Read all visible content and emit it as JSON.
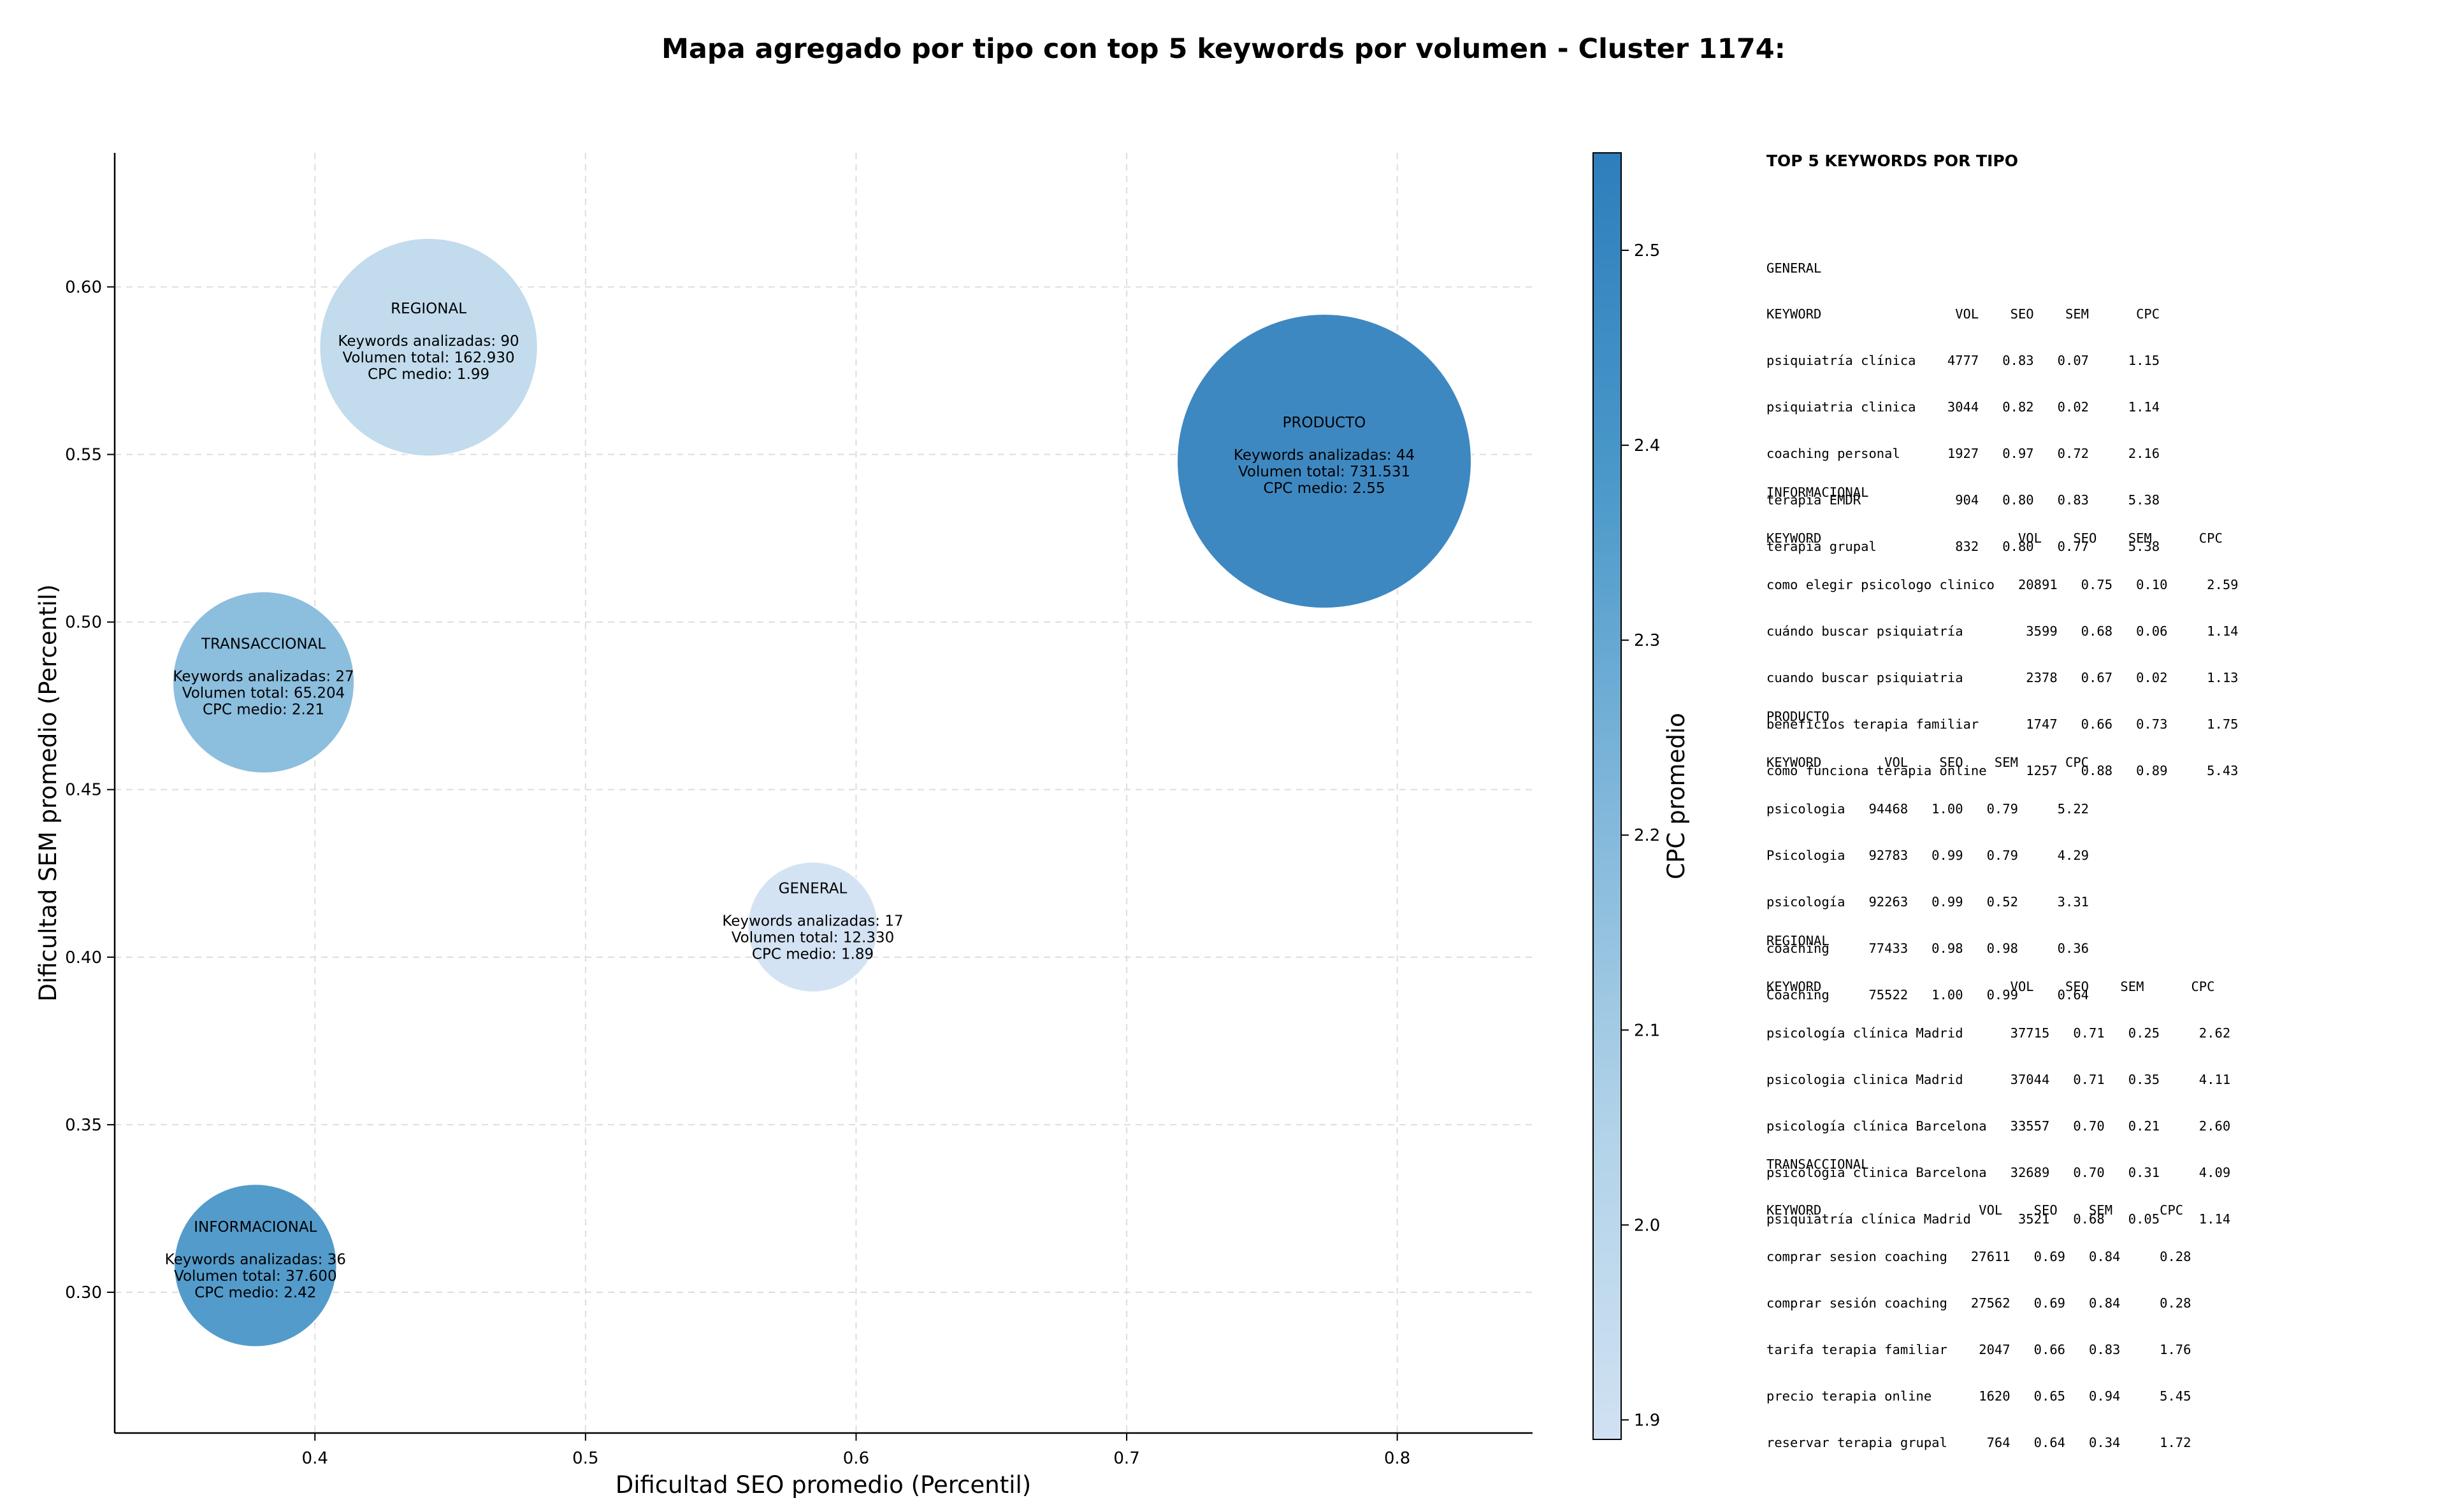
{
  "title": "Mapa agregado por tipo con top 5 keywords por volumen - Cluster 1174:",
  "chart_data": {
    "type": "scatter",
    "title": "Mapa agregado por tipo con top 5 keywords por volumen - Cluster 1174:",
    "xlabel": "Dificultad SEO promedio (Percentil)",
    "ylabel": "Dificultad SEM promedio (Percentil)",
    "xlim": [
      0.326,
      0.85
    ],
    "ylim": [
      0.258,
      0.64
    ],
    "xticks": [
      "0.4",
      "0.5",
      "0.6",
      "0.7",
      "0.8"
    ],
    "yticks": [
      "0.30",
      "0.35",
      "0.40",
      "0.45",
      "0.50",
      "0.55",
      "0.60"
    ],
    "grid": true,
    "colorbar": {
      "label": "CPC promedio",
      "min": 1.89,
      "max": 2.55,
      "ticks": [
        "1.9",
        "2.0",
        "2.1",
        "2.2",
        "2.3",
        "2.4",
        "2.5"
      ],
      "colormap": "Blues"
    },
    "points": [
      {
        "name": "REGIONAL",
        "x": 0.442,
        "y": 0.582,
        "keywords": 90,
        "volume": 162930,
        "cpc": 1.99,
        "lines": [
          "Keywords analizadas: 90",
          "Volumen total: 162.930",
          "CPC medio: 1.99"
        ]
      },
      {
        "name": "PRODUCTO",
        "x": 0.773,
        "y": 0.548,
        "keywords": 44,
        "volume": 731531,
        "cpc": 2.55,
        "lines": [
          "Keywords analizadas: 44",
          "Volumen total: 731.531",
          "CPC medio: 2.55"
        ]
      },
      {
        "name": "TRANSACCIONAL",
        "x": 0.381,
        "y": 0.482,
        "keywords": 27,
        "volume": 65204,
        "cpc": 2.21,
        "lines": [
          "Keywords analizadas: 27",
          "Volumen total: 65.204",
          "CPC medio: 2.21"
        ]
      },
      {
        "name": "GENERAL",
        "x": 0.584,
        "y": 0.409,
        "keywords": 17,
        "volume": 12330,
        "cpc": 1.89,
        "lines": [
          "Keywords analizadas: 17",
          "Volumen total: 12.330",
          "CPC medio: 1.89"
        ]
      },
      {
        "name": "INFORMACIONAL",
        "x": 0.378,
        "y": 0.308,
        "keywords": 36,
        "volume": 37600,
        "cpc": 2.42,
        "lines": [
          "Keywords analizadas: 36",
          "Volumen total: 37.600",
          "CPC medio: 2.42"
        ]
      }
    ]
  },
  "panel": {
    "title": "TOP 5 KEYWORDS POR TIPO",
    "blocks": [
      {
        "name": "GENERAL",
        "header": "KEYWORD                 VOL    SEO    SEM      CPC",
        "rows": [
          "psiquiatría clínica    4777   0.83   0.07     1.15",
          "psiquiatria clinica    3044   0.82   0.02     1.14",
          "coaching personal      1927   0.97   0.72     2.16",
          "terapia EMDR            904   0.80   0.83     5.38",
          "terapia grupal          832   0.80   0.77     5.38"
        ]
      },
      {
        "name": "INFORMACIONAL",
        "header": "KEYWORD                         VOL    SEO    SEM      CPC",
        "rows": [
          "como elegir psicologo clinico   20891   0.75   0.10     2.59",
          "cuándo buscar psiquiatría        3599   0.68   0.06     1.14",
          "cuando buscar psiquiatria        2378   0.67   0.02     1.13",
          "beneficios terapia familiar      1747   0.66   0.73     1.75",
          "cómo funciona terapia online     1257   0.88   0.89     5.43"
        ]
      },
      {
        "name": "PRODUCTO",
        "header": "KEYWORD        VOL    SEO    SEM      CPC",
        "rows": [
          "psicologia   94468   1.00   0.79     5.22",
          "Psicologia   92783   0.99   0.79     4.29",
          "psicología   92263   0.99   0.52     3.31",
          "coaching     77433   0.98   0.98     0.36",
          "Coaching     75522   1.00   0.99     0.64"
        ]
      },
      {
        "name": "REGIONAL",
        "header": "KEYWORD                        VOL    SEO    SEM      CPC",
        "rows": [
          "psicología clínica Madrid      37715   0.71   0.25     2.62",
          "psicologia clinica Madrid      37044   0.71   0.35     4.11",
          "psicología clínica Barcelona   33557   0.70   0.21     2.60",
          "psicologia clinica Barcelona   32689   0.70   0.31     4.09",
          "psiquiatría clínica Madrid      3521   0.68   0.05     1.14"
        ]
      },
      {
        "name": "TRANSACCIONAL",
        "header": "KEYWORD                    VOL    SEO    SEM      CPC",
        "rows": [
          "comprar sesion coaching   27611   0.69   0.84     0.28",
          "comprar sesión coaching   27562   0.69   0.84     0.28",
          "tarifa terapia familiar    2047   0.66   0.83     1.76",
          "precio terapia online      1620   0.65   0.94     5.45",
          "reservar terapia grupal     764   0.64   0.34     1.72"
        ]
      }
    ]
  }
}
